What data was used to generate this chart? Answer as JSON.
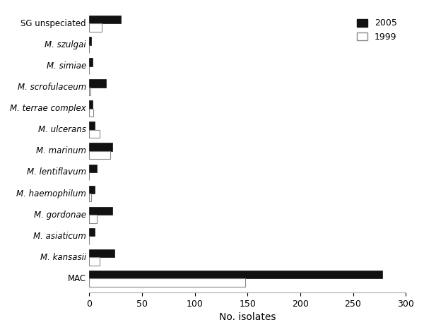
{
  "categories": [
    "MAC",
    "M. kansasii",
    "M. asiaticum",
    "M. gordonae",
    "M. haemophilum",
    "M. lentiflavum",
    "M. marinum",
    "M. ulcerans",
    "M. terrae complex",
    "M. scrofulaceum",
    "M. simiae",
    "M. szulgai",
    "SG unspeciated"
  ],
  "values_2005": [
    278,
    24,
    5,
    22,
    5,
    7,
    22,
    5,
    3,
    16,
    3,
    2,
    30
  ],
  "values_1999": [
    148,
    10,
    0,
    7,
    2,
    0,
    20,
    10,
    4,
    1,
    0,
    0,
    12
  ],
  "color_2005": "#111111",
  "color_1999": "#ffffff",
  "color_1999_edge": "#888888",
  "xlabel": "No. isolates",
  "xlim": [
    0,
    300
  ],
  "xticks": [
    0,
    50,
    100,
    150,
    200,
    250,
    300
  ],
  "legend_labels": [
    "2005",
    "1999"
  ],
  "bar_height": 0.38,
  "figsize": [
    6.0,
    4.7
  ],
  "dpi": 100,
  "italic_labels": [
    "M. kansasii",
    "M. asiaticum",
    "M. gordonae",
    "M. haemophilum",
    "M. lentiflavum",
    "M. marinum",
    "M. ulcerans",
    "M. terrae complex",
    "M. scrofulaceum",
    "M. simiae",
    "M. szulgai"
  ]
}
